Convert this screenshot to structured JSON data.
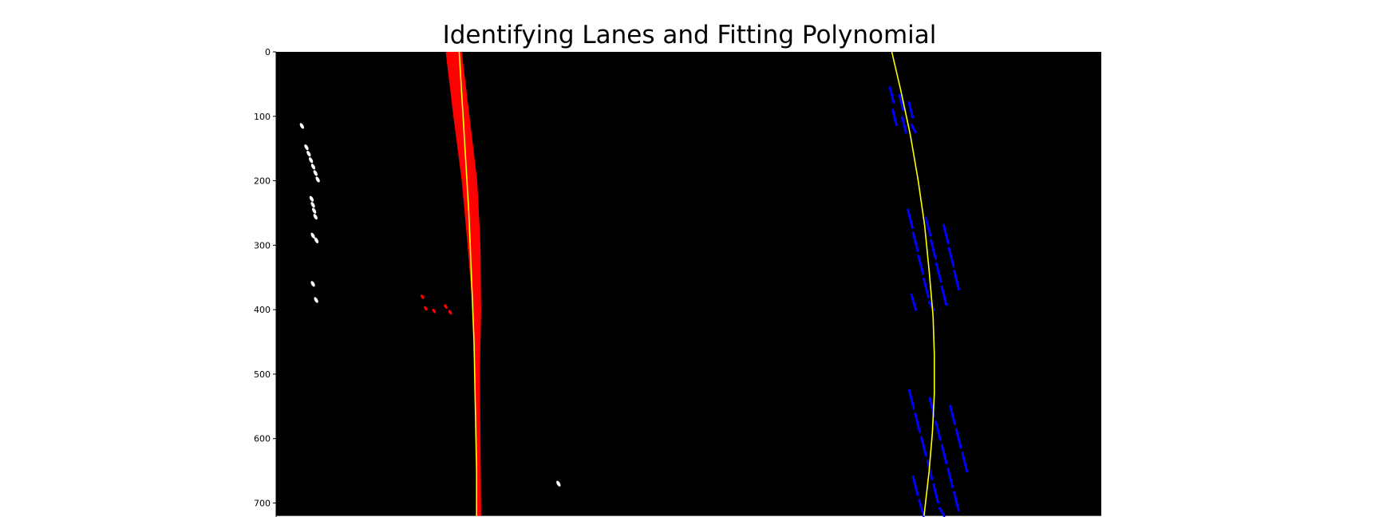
{
  "chart_data": {
    "type": "image",
    "title": "Identifying Lanes and Fitting Polynomial",
    "xlabel": "",
    "ylabel": "",
    "image_size": [
      1280,
      720
    ],
    "xlim": [
      0,
      1280
    ],
    "ylim": [
      720,
      0
    ],
    "y_ticks": [
      0,
      100,
      200,
      300,
      400,
      500,
      600,
      700
    ],
    "x_ticks": [],
    "background_color": "#000000",
    "colors": {
      "left_lane": "#ff0000",
      "right_lane": "#0000ff",
      "fit_line": "#ffff00",
      "other_pixels": "#ffffff"
    },
    "left_lane_pixels": {
      "color": "#ff0000",
      "boundary_left": [
        [
          263,
          0
        ],
        [
          275,
          100
        ],
        [
          288,
          200
        ],
        [
          297,
          300
        ],
        [
          305,
          400
        ],
        [
          308,
          500
        ],
        [
          310,
          600
        ],
        [
          312,
          720
        ]
      ],
      "boundary_right": [
        [
          288,
          0
        ],
        [
          300,
          100
        ],
        [
          312,
          200
        ],
        [
          317,
          300
        ],
        [
          318,
          400
        ],
        [
          316,
          500
        ],
        [
          317,
          600
        ],
        [
          318,
          720
        ]
      ],
      "fragments": [
        [
          227,
          380
        ],
        [
          232,
          398
        ],
        [
          245,
          402
        ],
        [
          263,
          395
        ],
        [
          270,
          404
        ]
      ]
    },
    "right_lane_pixels": {
      "color": "#0000ff",
      "clusters": [
        {
          "x_range": [
            952,
            992
          ],
          "y_range": [
            55,
            125
          ]
        },
        {
          "x_range": [
            980,
            1055
          ],
          "y_range": [
            245,
            400
          ]
        },
        {
          "x_range": [
            982,
            1068
          ],
          "y_range": [
            525,
            720
          ]
        }
      ]
    },
    "other_pixels": {
      "color": "#ffffff",
      "clusters": [
        {
          "x_range": [
            40,
            52
          ],
          "y_range": [
            115,
            128
          ]
        },
        {
          "x_range": [
            47,
            68
          ],
          "y_range": [
            148,
            208
          ]
        },
        {
          "x_range": [
            55,
            63
          ],
          "y_range": [
            228,
            265
          ]
        },
        {
          "x_range": [
            57,
            68
          ],
          "y_range": [
            285,
            300
          ]
        },
        {
          "x_range": [
            57,
            62
          ],
          "y_range": [
            360,
            365
          ]
        },
        {
          "x_range": [
            62,
            70
          ],
          "y_range": [
            385,
            395
          ]
        },
        {
          "x_range": [
            438,
            442
          ],
          "y_range": [
            670,
            673
          ]
        }
      ]
    },
    "left_fit": {
      "color": "#ffff00",
      "points": [
        [
          284,
          0
        ],
        [
          287,
          50
        ],
        [
          290,
          100
        ],
        [
          293,
          150
        ],
        [
          296,
          200
        ],
        [
          299,
          250
        ],
        [
          301,
          300
        ],
        [
          303,
          350
        ],
        [
          305,
          400
        ],
        [
          307,
          450
        ],
        [
          308,
          500
        ],
        [
          309,
          550
        ],
        [
          310,
          600
        ],
        [
          311,
          650
        ],
        [
          311,
          720
        ]
      ]
    },
    "right_fit": {
      "color": "#ffff00",
      "points": [
        [
          955,
          0
        ],
        [
          969,
          60
        ],
        [
          984,
          130
        ],
        [
          996,
          200
        ],
        [
          1006,
          270
        ],
        [
          1013,
          340
        ],
        [
          1019,
          410
        ],
        [
          1021,
          470
        ],
        [
          1021,
          530
        ],
        [
          1018,
          590
        ],
        [
          1013,
          650
        ],
        [
          1005,
          720
        ]
      ]
    }
  }
}
